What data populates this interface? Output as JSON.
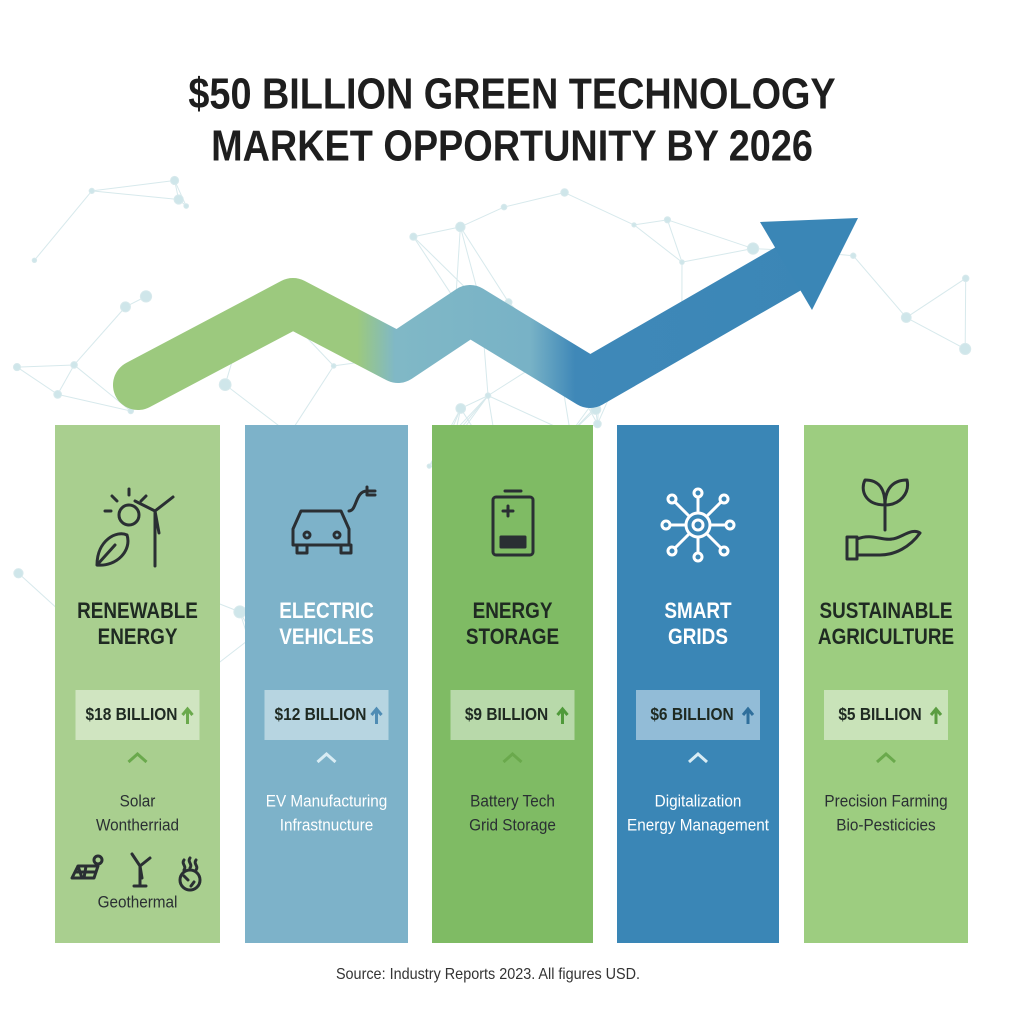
{
  "header": {
    "title_lines": [
      "$50 BILLION GREEN TECHNOLOGY",
      "MARKET OPPORTUNITY BY 2026"
    ]
  },
  "columns": [
    {
      "name_lines": [
        "RENEWABLE",
        "ENERGY"
      ],
      "value": "$18 BILLION",
      "items": [
        "Solar",
        "Wontherriad",
        "Geothermal"
      ]
    },
    {
      "name_lines": [
        "ELECTRIC",
        "VEHICLES"
      ],
      "value": "$12 BILLION",
      "items": [
        "EV Manufacturing",
        "Infrastnucture"
      ]
    },
    {
      "name_lines": [
        "ENERGY",
        "STORAGE"
      ],
      "value": "$9 BILLION",
      "items": [
        "Battery Tech",
        "Grid Storage"
      ]
    },
    {
      "name_lines": [
        "SMART",
        "GRIDS"
      ],
      "value": "$6 BILLION",
      "items": [
        "Digitalization",
        "Energy Management"
      ]
    },
    {
      "name_lines": [
        "SUSTAINABLE",
        "AGRICULTURE"
      ],
      "value": "$5 BILLION",
      "items": [
        "Precision Farming",
        "Bio-Pesticicies"
      ]
    }
  ],
  "footer": {
    "source": "Source: Industry Reports 2023. All figures USD."
  }
}
